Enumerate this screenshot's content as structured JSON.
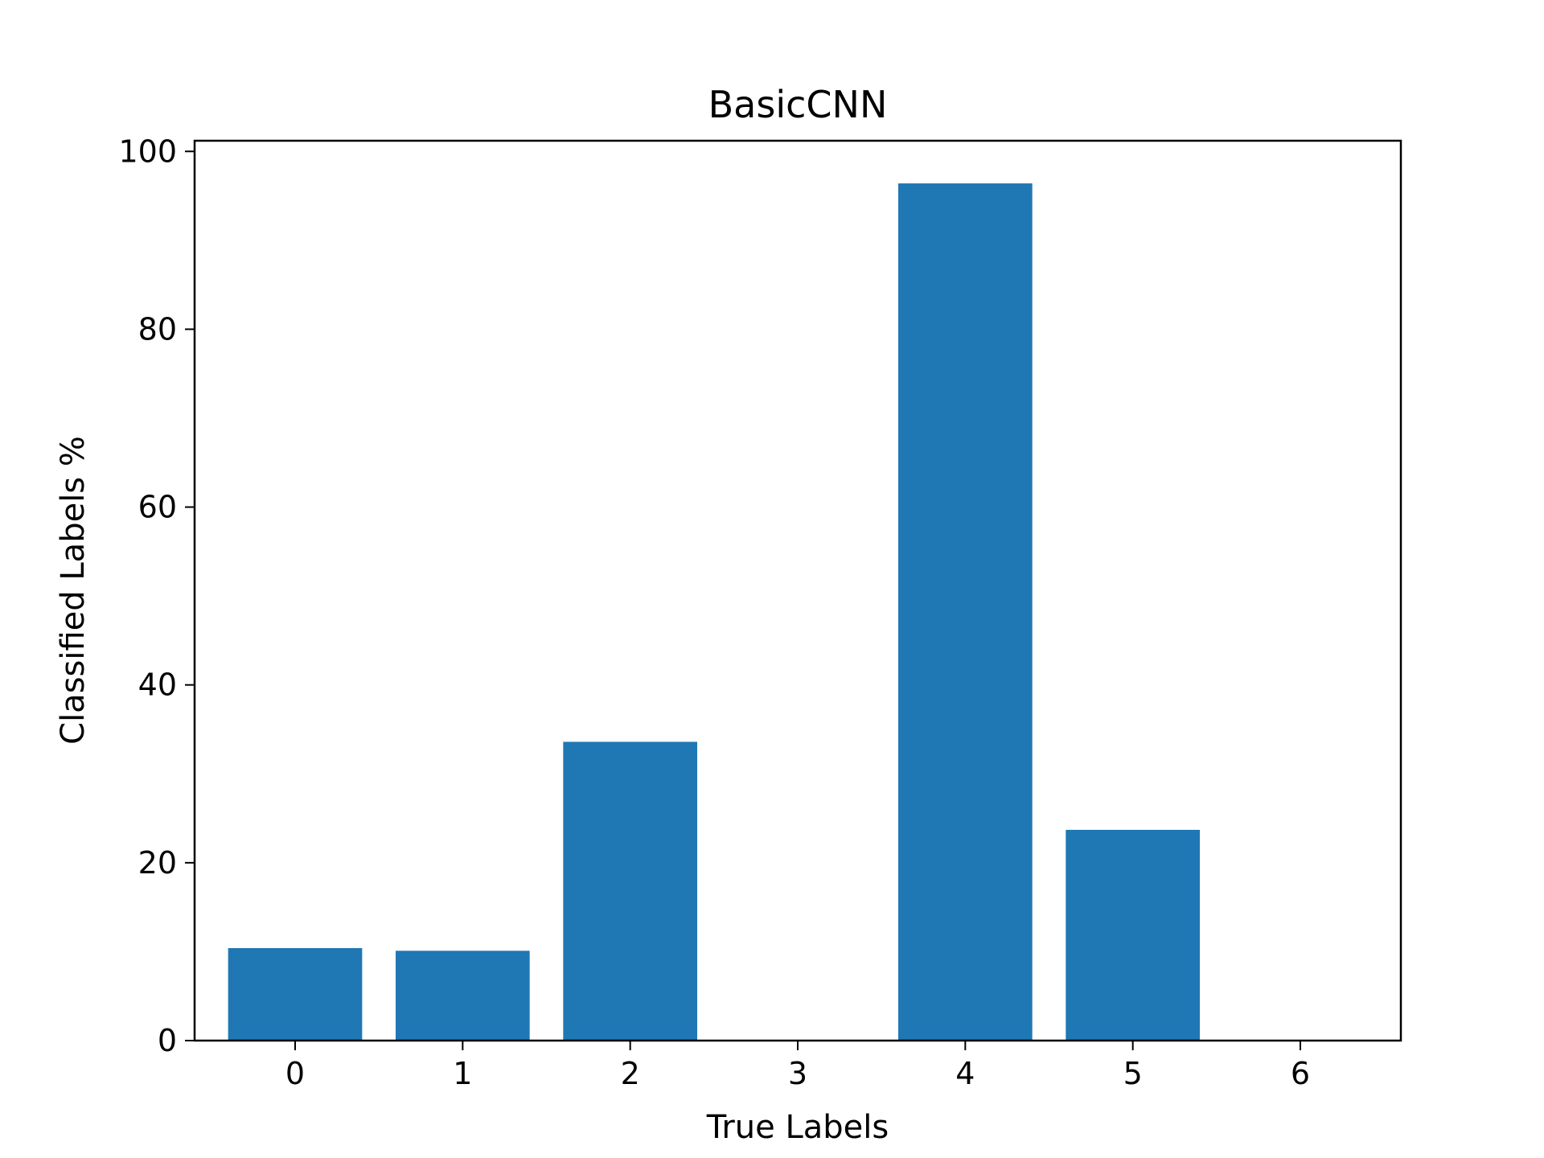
{
  "chart_data": {
    "type": "bar",
    "title": "BasicCNN",
    "xlabel": "True Labels",
    "ylabel": "Classified Labels %",
    "categories": [
      "0",
      "1",
      "2",
      "3",
      "4",
      "5",
      "6"
    ],
    "values": [
      10.4,
      10.1,
      33.6,
      0,
      96.4,
      23.7,
      0
    ],
    "ylim": [
      0,
      101.2
    ],
    "yticks": [
      "0",
      "20",
      "40",
      "60",
      "80",
      "100"
    ],
    "bar_color": "#1f77b4",
    "grid": false
  }
}
